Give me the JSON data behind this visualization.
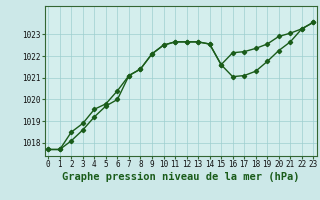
{
  "xlabel": "Graphe pression niveau de la mer (hPa)",
  "background_color": "#cce8e8",
  "plot_bg_color": "#d4eeed",
  "grid_color": "#9ecfcf",
  "line_color": "#1a5c1a",
  "x_ticks": [
    0,
    1,
    2,
    3,
    4,
    5,
    6,
    7,
    8,
    9,
    10,
    11,
    12,
    13,
    14,
    15,
    16,
    17,
    18,
    19,
    20,
    21,
    22,
    23
  ],
  "y_ticks": [
    1018,
    1019,
    1020,
    1021,
    1022,
    1023
  ],
  "ylim": [
    1017.4,
    1024.3
  ],
  "xlim": [
    -0.3,
    23.3
  ],
  "series1_x": [
    0,
    1,
    2,
    3,
    4,
    5,
    6,
    7,
    8,
    9,
    10,
    11,
    12,
    13,
    14,
    15,
    16,
    17,
    18,
    19,
    20,
    21,
    22,
    23
  ],
  "series1_y": [
    1017.7,
    1017.7,
    1018.1,
    1018.6,
    1019.2,
    1019.7,
    1020.0,
    1021.1,
    1021.4,
    1022.1,
    1022.5,
    1022.65,
    1022.65,
    1022.65,
    1022.55,
    1021.6,
    1022.15,
    1022.2,
    1022.35,
    1022.55,
    1022.9,
    1023.05,
    1023.25,
    1023.55
  ],
  "series2_x": [
    0,
    1,
    2,
    3,
    4,
    5,
    6,
    7,
    8,
    9,
    10,
    11,
    12,
    13,
    14,
    15,
    16,
    17,
    18,
    19,
    20,
    21,
    22,
    23
  ],
  "series2_y": [
    1017.7,
    1017.7,
    1018.5,
    1018.9,
    1019.55,
    1019.8,
    1020.4,
    1021.1,
    1021.4,
    1022.1,
    1022.5,
    1022.65,
    1022.65,
    1022.65,
    1022.55,
    1021.6,
    1021.05,
    1021.1,
    1021.3,
    1021.75,
    1022.25,
    1022.65,
    1023.25,
    1023.55
  ],
  "marker": "D",
  "marker_size": 2.2,
  "linewidth": 1.0,
  "tick_fontsize": 5.5,
  "xlabel_fontsize": 7.5,
  "spine_color": "#336633"
}
